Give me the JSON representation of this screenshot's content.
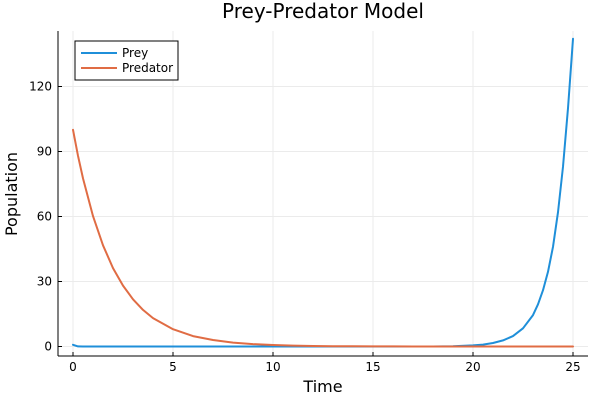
{
  "chart_data": {
    "type": "line",
    "title": "Prey-Predator Model",
    "xlabel": "Time",
    "ylabel": "Population",
    "xlim": [
      0,
      25
    ],
    "ylim": [
      0,
      144
    ],
    "xticks": [
      0,
      5,
      10,
      15,
      20,
      25
    ],
    "yticks": [
      0,
      30,
      60,
      90,
      120
    ],
    "grid": true,
    "legend_position": "top-left",
    "x": [
      0,
      0.25,
      0.5,
      1,
      1.5,
      2,
      2.5,
      3,
      3.5,
      4,
      5,
      6,
      7,
      8,
      9,
      10,
      11,
      12,
      13,
      14,
      15,
      16,
      17,
      18,
      19,
      20,
      20.5,
      21,
      21.5,
      22,
      22.5,
      23,
      23.25,
      23.5,
      23.75,
      24,
      24.25,
      24.5,
      24.75,
      25
    ],
    "series": [
      {
        "name": "Prey",
        "color": "#1f8fd9",
        "values": [
          0.8,
          0.05,
          0.0,
          0.0,
          0.0,
          0.0,
          0.0,
          0.0,
          0.0,
          0.0,
          0.0,
          0.0,
          0.0,
          0.0,
          0.0,
          0.0,
          0.0,
          0.0,
          0.0,
          0.0,
          0.0,
          0.0,
          0.0,
          0.0,
          0.1,
          0.5,
          0.9,
          1.6,
          2.8,
          4.8,
          8.4,
          14.5,
          19.5,
          26.0,
          34.5,
          46.0,
          62.0,
          83.0,
          110.0,
          142.0
        ]
      },
      {
        "name": "Predator",
        "color": "#e06c44",
        "values": [
          100,
          88,
          77.6,
          60.2,
          46.7,
          36.2,
          28.1,
          21.8,
          16.9,
          13.1,
          8.0,
          4.8,
          3.0,
          1.8,
          1.1,
          0.7,
          0.4,
          0.25,
          0.15,
          0.09,
          0.05,
          0.03,
          0.02,
          0.01,
          0.0,
          0.0,
          0.0,
          0.0,
          0.0,
          0.0,
          0.0,
          0.0,
          0.0,
          0.0,
          0.0,
          0.0,
          0.0,
          0.0,
          0.0,
          0.0
        ]
      }
    ]
  }
}
